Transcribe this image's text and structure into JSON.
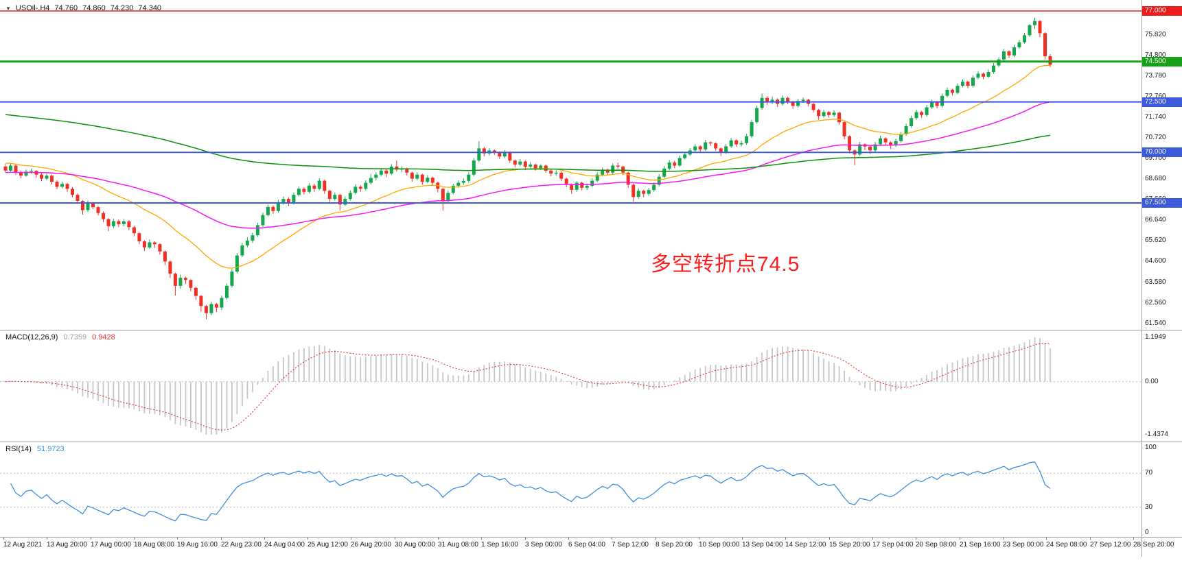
{
  "window": {
    "symbol_label": "USOil-.H4",
    "ohlc": {
      "open": "74.760",
      "high": "74.860",
      "low": "74.230",
      "close": "74.340"
    }
  },
  "annotation": {
    "text": "多空转折点74.5",
    "color": "#FF1B1B"
  },
  "chart_data": {
    "type": "candlestick",
    "symbol": "USOil",
    "timeframe": "H4",
    "title": "USOil-.H4 74.760 74.860 74.230 74.340",
    "style": {
      "up": "#14A84E",
      "down": "#EF3124"
    },
    "price_axis_ticks": [
      "75.820",
      "74.800",
      "73.780",
      "72.760",
      "71.740",
      "70.720",
      "69.700",
      "68.680",
      "67.660",
      "66.640",
      "65.620",
      "64.600",
      "63.580",
      "62.560",
      "61.540"
    ],
    "horizontal_levels": [
      {
        "price": 77.0,
        "label": "77.000",
        "color": "#EE1C1C",
        "width": 1.4
      },
      {
        "price": 74.5,
        "label": "74.500",
        "color": "#18A018",
        "width": 3
      },
      {
        "price": 72.5,
        "label": "72.500",
        "color": "#3B5BDB",
        "width": 2
      },
      {
        "price": 70.0,
        "label": "70.000",
        "color": "#3B5BDB",
        "width": 2
      },
      {
        "price": 67.5,
        "label": "67.500",
        "color": "#3B5BDB",
        "width": 2
      }
    ],
    "moving_averages": [
      {
        "name": "ma-line-fast",
        "period": 24,
        "seed": 69.5,
        "color": "#FFA500",
        "width": 1.3
      },
      {
        "name": "ma-line-mid",
        "period": 70,
        "seed": 69.0,
        "color": "#F516F5",
        "width": 1.5
      },
      {
        "name": "ma-line-slow",
        "period": 200,
        "seed": 71.9,
        "color": "#089008",
        "width": 1.5
      }
    ],
    "indicators": {
      "macd": {
        "label": "MACD(12,26,9)",
        "main_value": "0.7359",
        "signal_value": "0.9428",
        "params": {
          "fast": 12,
          "slow": 26,
          "signal": 9
        },
        "axis_labels": {
          "top": "1.1949",
          "zero": "0.00",
          "bottom": "-1.4374"
        },
        "hist_color": "#C6C6C6",
        "signal_color": "#E03030",
        "main_value_color": "#A0A0A0"
      },
      "rsi": {
        "label": "RSI(14)",
        "period": 14,
        "value": "51.9723",
        "color": "#3C8EDC",
        "levels": [
          70,
          30
        ],
        "axis_labels": [
          "100",
          "70",
          "30",
          "0"
        ]
      }
    },
    "x_labels": [
      "12 Aug 2021",
      "13 Aug 20:00",
      "17 Aug 00:00",
      "18 Aug 08:00",
      "19 Aug 16:00",
      "22 Aug 23:00",
      "24 Aug 04:00",
      "25 Aug 12:00",
      "26 Aug 20:00",
      "30 Aug 00:00",
      "31 Aug 08:00",
      "1 Sep 16:00",
      "3 Sep 00:00",
      "6 Sep 04:00",
      "7 Sep 12:00",
      "8 Sep 20:00",
      "10 Sep 00:00",
      "13 Sep 04:00",
      "14 Sep 12:00",
      "15 Sep 20:00",
      "17 Sep 04:00",
      "20 Sep 08:00",
      "21 Sep 16:00",
      "23 Sep 00:00",
      "24 Sep 08:00",
      "27 Sep 12:00",
      "28 Sep 20:00"
    ],
    "candles": [
      [
        69.3,
        69.42,
        69.02,
        69.1
      ],
      [
        69.1,
        69.45,
        69.05,
        69.35
      ],
      [
        69.35,
        69.4,
        68.88,
        69.0
      ],
      [
        69.0,
        69.1,
        68.72,
        68.85
      ],
      [
        68.85,
        69.15,
        68.8,
        69.05
      ],
      [
        69.05,
        69.18,
        68.95,
        69.09
      ],
      [
        69.09,
        69.12,
        68.75,
        68.9
      ],
      [
        68.9,
        68.98,
        68.58,
        68.7
      ],
      [
        68.7,
        68.95,
        68.62,
        68.85
      ],
      [
        68.85,
        68.9,
        68.42,
        68.55
      ],
      [
        68.55,
        68.62,
        68.18,
        68.3
      ],
      [
        68.3,
        68.55,
        68.22,
        68.44
      ],
      [
        68.44,
        68.5,
        68.05,
        68.2
      ],
      [
        68.2,
        68.28,
        67.78,
        67.9
      ],
      [
        67.9,
        67.98,
        67.45,
        67.6
      ],
      [
        67.6,
        67.65,
        66.92,
        67.15
      ],
      [
        67.15,
        67.62,
        67.05,
        67.5
      ],
      [
        67.5,
        67.55,
        67.18,
        67.29
      ],
      [
        67.29,
        67.35,
        66.88,
        67.0
      ],
      [
        67.0,
        67.08,
        66.55,
        66.7
      ],
      [
        66.7,
        66.75,
        66.1,
        66.35
      ],
      [
        66.35,
        66.72,
        66.25,
        66.6
      ],
      [
        66.6,
        66.68,
        66.3,
        66.45
      ],
      [
        66.45,
        66.7,
        66.35,
        66.59
      ],
      [
        66.59,
        66.65,
        66.15,
        66.3
      ],
      [
        66.3,
        66.38,
        65.85,
        66.0
      ],
      [
        66.0,
        66.05,
        65.45,
        65.6
      ],
      [
        65.6,
        65.65,
        65.12,
        65.3
      ],
      [
        65.3,
        65.7,
        65.22,
        65.55
      ],
      [
        65.55,
        65.6,
        65.28,
        65.46
      ],
      [
        65.46,
        65.5,
        64.95,
        65.1
      ],
      [
        65.1,
        65.15,
        64.42,
        64.6
      ],
      [
        64.6,
        64.65,
        63.8,
        64.0
      ],
      [
        64.0,
        64.05,
        62.92,
        63.4
      ],
      [
        63.4,
        63.95,
        63.25,
        63.8
      ],
      [
        63.8,
        63.85,
        63.48,
        63.69
      ],
      [
        63.69,
        63.72,
        63.12,
        63.3
      ],
      [
        63.3,
        63.36,
        62.7,
        62.9
      ],
      [
        62.9,
        62.95,
        62.12,
        62.4
      ],
      [
        62.4,
        62.45,
        61.74,
        62.05
      ],
      [
        62.05,
        62.62,
        61.95,
        62.5
      ],
      [
        62.5,
        62.55,
        62.1,
        62.32
      ],
      [
        62.32,
        62.92,
        62.2,
        62.8
      ],
      [
        62.8,
        63.52,
        62.72,
        63.4
      ],
      [
        63.4,
        64.22,
        63.32,
        64.1
      ],
      [
        64.1,
        65.02,
        64.02,
        64.9
      ],
      [
        64.9,
        65.52,
        64.82,
        65.4
      ],
      [
        65.4,
        65.8,
        65.3,
        65.64
      ],
      [
        65.64,
        66.02,
        65.52,
        65.9
      ],
      [
        65.9,
        66.52,
        65.82,
        66.4
      ],
      [
        66.4,
        67.02,
        66.32,
        66.9
      ],
      [
        66.9,
        67.42,
        66.82,
        67.3
      ],
      [
        67.3,
        67.38,
        66.95,
        67.1
      ],
      [
        67.1,
        67.66,
        67.02,
        67.54
      ],
      [
        67.54,
        67.82,
        67.42,
        67.7
      ],
      [
        67.7,
        67.78,
        67.35,
        67.5
      ],
      [
        67.5,
        68.02,
        67.42,
        67.9
      ],
      [
        67.9,
        68.32,
        67.82,
        68.2
      ],
      [
        68.2,
        68.28,
        67.92,
        68.05
      ],
      [
        68.05,
        68.48,
        67.98,
        68.36
      ],
      [
        68.36,
        68.45,
        68.05,
        68.2
      ],
      [
        68.2,
        68.72,
        68.12,
        68.6
      ],
      [
        68.6,
        68.65,
        67.95,
        68.1
      ],
      [
        68.1,
        68.15,
        67.55,
        67.7
      ],
      [
        67.7,
        68.02,
        67.62,
        67.9
      ],
      [
        67.9,
        67.95,
        67.12,
        67.42
      ],
      [
        67.42,
        67.82,
        67.35,
        67.7
      ],
      [
        67.7,
        68.12,
        67.62,
        68.0
      ],
      [
        68.0,
        68.42,
        67.92,
        68.3
      ],
      [
        68.3,
        68.38,
        68.05,
        68.2
      ],
      [
        68.2,
        68.62,
        68.12,
        68.5
      ],
      [
        68.5,
        68.95,
        68.42,
        68.74
      ],
      [
        68.74,
        69.02,
        68.62,
        68.9
      ],
      [
        68.9,
        69.22,
        68.82,
        69.1
      ],
      [
        69.1,
        69.18,
        68.78,
        68.95
      ],
      [
        68.95,
        69.42,
        68.88,
        69.3
      ],
      [
        69.3,
        69.6,
        69.05,
        69.15
      ],
      [
        69.15,
        69.32,
        69.02,
        69.21
      ],
      [
        69.21,
        69.25,
        68.85,
        69.0
      ],
      [
        69.0,
        69.05,
        68.55,
        68.7
      ],
      [
        68.7,
        69.02,
        68.62,
        68.9
      ],
      [
        68.9,
        68.95,
        68.4,
        68.55
      ],
      [
        68.55,
        68.88,
        68.48,
        68.75
      ],
      [
        68.75,
        68.8,
        68.35,
        68.5
      ],
      [
        68.5,
        68.55,
        68.02,
        68.2
      ],
      [
        68.2,
        68.25,
        67.12,
        67.6
      ],
      [
        67.6,
        68.12,
        67.5,
        68.0
      ],
      [
        68.0,
        68.45,
        67.92,
        68.35
      ],
      [
        68.35,
        68.62,
        68.25,
        68.5
      ],
      [
        68.5,
        68.72,
        68.4,
        68.59
      ],
      [
        68.59,
        69.02,
        68.5,
        68.9
      ],
      [
        68.9,
        69.72,
        68.82,
        69.6
      ],
      [
        69.6,
        70.55,
        69.52,
        70.2
      ],
      [
        70.2,
        70.28,
        69.8,
        69.95
      ],
      [
        69.95,
        70.22,
        69.85,
        70.1
      ],
      [
        70.1,
        70.15,
        69.88,
        69.99
      ],
      [
        69.99,
        70.05,
        69.68,
        69.8
      ],
      [
        69.8,
        70.12,
        69.72,
        70.0
      ],
      [
        70.0,
        70.05,
        69.48,
        69.6
      ],
      [
        69.6,
        69.65,
        69.25,
        69.4
      ],
      [
        69.4,
        69.68,
        69.32,
        69.55
      ],
      [
        69.55,
        69.6,
        69.12,
        69.29
      ],
      [
        69.29,
        69.52,
        69.22,
        69.4
      ],
      [
        69.4,
        69.45,
        69.1,
        69.2
      ],
      [
        69.2,
        69.42,
        69.12,
        69.35
      ],
      [
        69.35,
        69.4,
        69.0,
        69.1
      ],
      [
        69.1,
        69.15,
        68.82,
        68.95
      ],
      [
        68.95,
        69.12,
        68.85,
        69.0
      ],
      [
        69.0,
        69.05,
        68.58,
        68.7
      ],
      [
        68.7,
        68.75,
        68.28,
        68.4
      ],
      [
        68.4,
        68.45,
        67.95,
        68.15
      ],
      [
        68.15,
        68.58,
        68.05,
        68.5
      ],
      [
        68.5,
        68.55,
        68.12,
        68.25
      ],
      [
        68.25,
        68.45,
        68.15,
        68.35
      ],
      [
        68.35,
        68.72,
        68.28,
        68.6
      ],
      [
        68.6,
        69.02,
        68.52,
        68.9
      ],
      [
        68.9,
        69.25,
        68.82,
        69.15
      ],
      [
        69.15,
        69.2,
        68.85,
        69.0
      ],
      [
        69.0,
        69.45,
        68.92,
        69.35
      ],
      [
        69.35,
        69.5,
        69.2,
        69.3
      ],
      [
        69.3,
        69.35,
        68.88,
        69.0
      ],
      [
        69.0,
        69.05,
        68.25,
        68.4
      ],
      [
        68.4,
        68.45,
        67.56,
        67.8
      ],
      [
        67.8,
        68.22,
        67.7,
        68.1
      ],
      [
        68.1,
        68.15,
        67.78,
        67.95
      ],
      [
        67.95,
        68.25,
        67.85,
        68.14
      ],
      [
        68.14,
        68.52,
        68.05,
        68.4
      ],
      [
        68.4,
        68.92,
        68.32,
        68.8
      ],
      [
        68.8,
        69.32,
        68.72,
        69.2
      ],
      [
        69.2,
        69.62,
        69.12,
        69.5
      ],
      [
        69.5,
        69.58,
        69.22,
        69.35
      ],
      [
        69.35,
        69.85,
        69.28,
        69.72
      ],
      [
        69.72,
        70.02,
        69.65,
        69.9
      ],
      [
        69.9,
        70.22,
        69.82,
        70.1
      ],
      [
        70.1,
        70.42,
        70.02,
        70.3
      ],
      [
        70.3,
        70.35,
        70.02,
        70.15
      ],
      [
        70.15,
        70.62,
        70.08,
        70.5
      ],
      [
        70.5,
        70.55,
        70.32,
        70.45
      ],
      [
        70.45,
        70.5,
        70.08,
        70.2
      ],
      [
        70.2,
        70.25,
        69.82,
        70.0
      ],
      [
        70.0,
        70.42,
        69.92,
        70.3
      ],
      [
        70.3,
        70.72,
        70.22,
        70.6
      ],
      [
        70.6,
        70.65,
        70.28,
        70.4
      ],
      [
        70.4,
        70.58,
        70.3,
        70.46
      ],
      [
        70.46,
        70.92,
        70.38,
        70.8
      ],
      [
        70.8,
        71.62,
        70.72,
        71.5
      ],
      [
        71.5,
        72.32,
        71.42,
        72.2
      ],
      [
        72.2,
        72.92,
        72.12,
        72.7
      ],
      [
        72.7,
        72.78,
        72.35,
        72.5
      ],
      [
        72.5,
        72.75,
        72.4,
        72.61
      ],
      [
        72.61,
        72.68,
        72.25,
        72.4
      ],
      [
        72.4,
        72.82,
        72.32,
        72.7
      ],
      [
        72.7,
        72.75,
        72.38,
        72.5
      ],
      [
        72.5,
        72.55,
        72.15,
        72.3
      ],
      [
        72.3,
        72.65,
        72.22,
        72.55
      ],
      [
        72.55,
        72.72,
        72.45,
        72.61
      ],
      [
        72.61,
        72.65,
        72.28,
        72.4
      ],
      [
        72.4,
        72.45,
        71.98,
        72.1
      ],
      [
        72.1,
        72.15,
        71.62,
        71.8
      ],
      [
        71.8,
        72.12,
        71.72,
        72.0
      ],
      [
        72.0,
        72.05,
        71.72,
        71.85
      ],
      [
        71.85,
        72.08,
        71.75,
        71.97
      ],
      [
        71.97,
        72.02,
        71.38,
        71.5
      ],
      [
        71.5,
        71.55,
        70.65,
        70.8
      ],
      [
        70.8,
        70.85,
        69.95,
        70.1
      ],
      [
        70.1,
        70.15,
        69.37,
        69.9
      ],
      [
        69.9,
        70.52,
        69.82,
        70.4
      ],
      [
        70.4,
        70.45,
        70.12,
        70.29
      ],
      [
        70.29,
        70.35,
        69.92,
        70.1
      ],
      [
        70.1,
        70.52,
        70.02,
        70.4
      ],
      [
        70.4,
        70.82,
        70.32,
        70.7
      ],
      [
        70.7,
        70.75,
        70.38,
        70.5
      ],
      [
        70.5,
        70.55,
        70.18,
        70.35
      ],
      [
        70.35,
        70.68,
        70.28,
        70.56
      ],
      [
        70.56,
        71.02,
        70.48,
        70.9
      ],
      [
        70.9,
        71.42,
        70.82,
        71.3
      ],
      [
        71.3,
        71.82,
        71.22,
        71.7
      ],
      [
        71.7,
        72.12,
        71.62,
        72.0
      ],
      [
        72.0,
        72.05,
        71.72,
        71.85
      ],
      [
        71.85,
        72.35,
        71.78,
        72.23
      ],
      [
        72.23,
        72.62,
        72.15,
        72.5
      ],
      [
        72.5,
        72.55,
        72.18,
        72.3
      ],
      [
        72.3,
        72.92,
        72.22,
        72.8
      ],
      [
        72.8,
        73.22,
        72.72,
        73.1
      ],
      [
        73.1,
        73.15,
        72.82,
        72.95
      ],
      [
        72.95,
        73.42,
        72.88,
        73.3
      ],
      [
        73.3,
        73.62,
        73.22,
        73.5
      ],
      [
        73.5,
        73.55,
        73.18,
        73.3
      ],
      [
        73.3,
        73.82,
        73.22,
        73.7
      ],
      [
        73.7,
        74.02,
        73.62,
        73.9
      ],
      [
        73.9,
        73.95,
        73.62,
        73.75
      ],
      [
        73.75,
        74.1,
        73.68,
        73.98
      ],
      [
        73.98,
        74.42,
        73.9,
        74.3
      ],
      [
        74.3,
        74.72,
        74.22,
        74.6
      ],
      [
        74.6,
        75.12,
        74.52,
        75.0
      ],
      [
        75.0,
        75.05,
        74.68,
        74.8
      ],
      [
        74.8,
        75.32,
        74.72,
        75.2
      ],
      [
        75.2,
        75.57,
        75.12,
        75.45
      ],
      [
        75.45,
        75.92,
        75.38,
        75.8
      ],
      [
        75.8,
        76.35,
        75.72,
        76.3
      ],
      [
        76.3,
        76.67,
        76.1,
        76.5
      ],
      [
        76.5,
        76.55,
        75.7,
        75.9
      ],
      [
        75.9,
        75.95,
        74.6,
        74.76
      ],
      [
        74.76,
        74.86,
        74.23,
        74.34
      ]
    ]
  }
}
